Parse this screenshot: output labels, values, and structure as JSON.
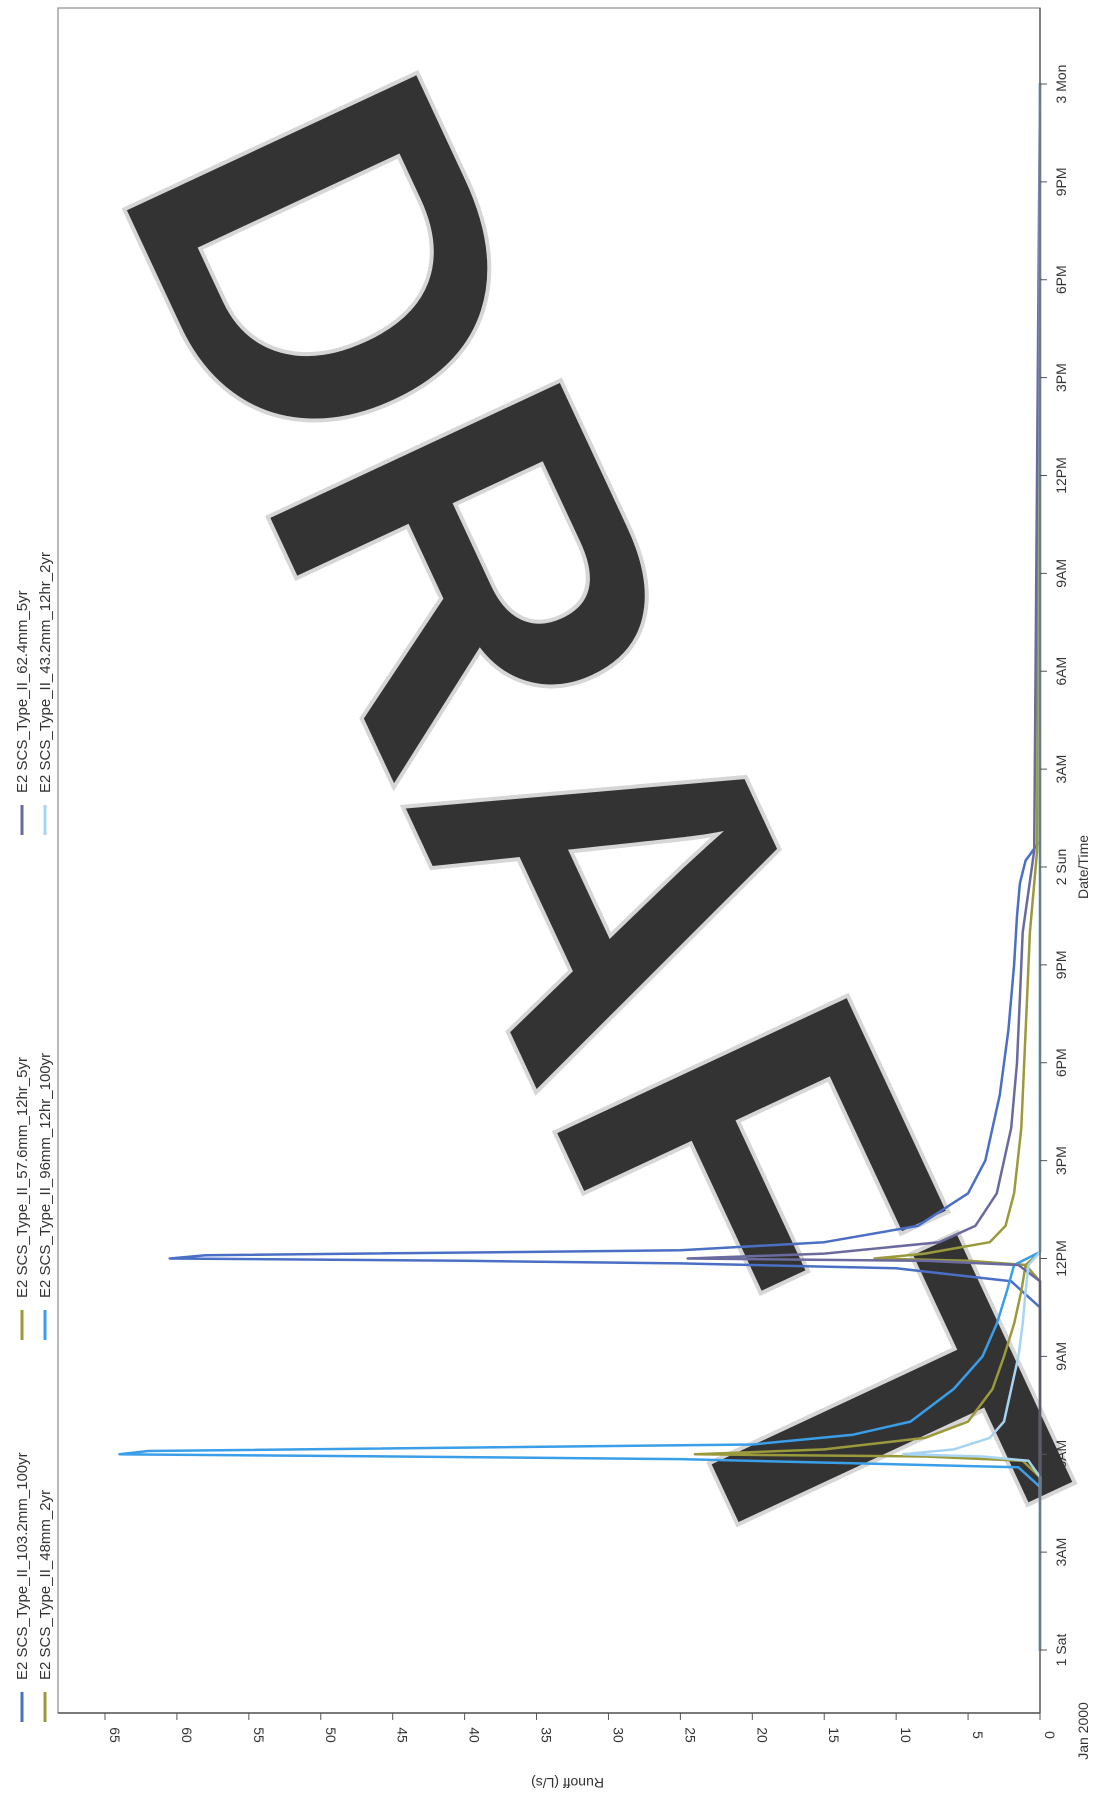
{
  "chart_data": {
    "type": "line",
    "orientation": "rotated-90-clockwise",
    "title": "",
    "xlabel": "Date/Time",
    "ylabel": "Runoff (L/s)",
    "xlim_hours": [
      0,
      51
    ],
    "ylim": [
      0,
      65
    ],
    "yticks": [
      0,
      5,
      10,
      15,
      20,
      25,
      30,
      35,
      40,
      45,
      50,
      55,
      60,
      65
    ],
    "xticks": [
      {
        "hour": 0,
        "label": "1 Sat"
      },
      {
        "hour": 3,
        "label": "3AM"
      },
      {
        "hour": 6,
        "label": "6AM"
      },
      {
        "hour": 9,
        "label": "9AM"
      },
      {
        "hour": 12,
        "label": "12PM"
      },
      {
        "hour": 15,
        "label": "3PM"
      },
      {
        "hour": 18,
        "label": "6PM"
      },
      {
        "hour": 21,
        "label": "9PM"
      },
      {
        "hour": 24,
        "label": "2 Sun"
      },
      {
        "hour": 27,
        "label": "3AM"
      },
      {
        "hour": 30,
        "label": "6AM"
      },
      {
        "hour": 33,
        "label": "9AM"
      },
      {
        "hour": 36,
        "label": "12PM"
      },
      {
        "hour": 39,
        "label": "3PM"
      },
      {
        "hour": 42,
        "label": "6PM"
      },
      {
        "hour": 45,
        "label": "9PM"
      },
      {
        "hour": 48,
        "label": "3 Mon"
      }
    ],
    "x_origin_label": "Jan 2000",
    "grid": false,
    "legend_position": "top",
    "watermark": "DRAFT",
    "series": [
      {
        "name": "E2 SCS_Type_II_103.2mm_100yr",
        "color": "#4b6fc4",
        "x": [
          0,
          10.5,
          11.3,
          11.7,
          11.85,
          11.93,
          12.0,
          12.1,
          12.25,
          12.5,
          13,
          14,
          15,
          17,
          19,
          21,
          22.5,
          23.5,
          24.2,
          24.8,
          48
        ],
        "y": [
          0,
          0,
          2.0,
          10,
          25,
          40,
          60.5,
          58,
          25,
          15,
          8.5,
          5.0,
          3.8,
          2.8,
          2.2,
          1.8,
          1.6,
          1.4,
          1.0,
          0,
          0
        ]
      },
      {
        "name": "E2 SCS_Type_II_48mm_2yr",
        "color": "#9a9a3c",
        "x": [
          0,
          11.3,
          11.8,
          11.93,
          12.0,
          12.15,
          12.5,
          13,
          14,
          16,
          18,
          20,
          22,
          24.5,
          48
        ],
        "y": [
          0,
          0,
          1.0,
          5.0,
          11.5,
          8.0,
          3.5,
          2.4,
          1.8,
          1.3,
          1.1,
          0.9,
          0.7,
          0.2,
          0
        ]
      },
      {
        "name": "E2 SCS_Type_II_57.6mm_12hr_5yr",
        "color": "#9a9a3c",
        "x": [
          0,
          5.3,
          5.8,
          5.93,
          6.0,
          6.15,
          6.5,
          7,
          8,
          9,
          10,
          11,
          11.8,
          12.2,
          48
        ],
        "y": [
          0,
          0,
          1.2,
          8.0,
          24,
          15,
          8.0,
          5.0,
          3.3,
          2.5,
          1.8,
          1.3,
          1.0,
          0,
          0
        ]
      },
      {
        "name": "E2 SCS_Type_II_96mm_12hr_100yr",
        "color": "#3a9ee8",
        "x": [
          0,
          5.0,
          5.6,
          5.85,
          5.93,
          6.0,
          6.1,
          6.3,
          6.6,
          7,
          8,
          9,
          10,
          11,
          11.8,
          12.2,
          48
        ],
        "y": [
          0,
          0,
          1.5,
          25,
          45,
          64,
          62,
          20,
          13,
          9.0,
          6.0,
          4.0,
          3.0,
          2.3,
          1.8,
          0,
          0
        ]
      },
      {
        "name": "E2 SCS_Type_II_62.4mm_5yr",
        "color": "#6a6a9e",
        "x": [
          0,
          11.3,
          11.8,
          11.93,
          12.0,
          12.15,
          12.5,
          13,
          14,
          16,
          18,
          20,
          22,
          24.5,
          48
        ],
        "y": [
          0,
          0,
          1.5,
          8.0,
          24.5,
          15,
          7.0,
          4.5,
          3.0,
          2.0,
          1.6,
          1.4,
          1.2,
          0.4,
          0
        ]
      },
      {
        "name": "E2 SCS_Type_II_43.2mm_12hr_2yr",
        "color": "#a8d4f4",
        "x": [
          0,
          5.3,
          5.8,
          5.93,
          6.0,
          6.15,
          6.5,
          7,
          8,
          9,
          10,
          11,
          11.8,
          12.2,
          48
        ],
        "y": [
          0,
          0,
          0.8,
          4.0,
          9.5,
          6.0,
          3.5,
          2.5,
          2.0,
          1.5,
          1.2,
          1.0,
          0.8,
          0,
          0
        ]
      }
    ]
  }
}
